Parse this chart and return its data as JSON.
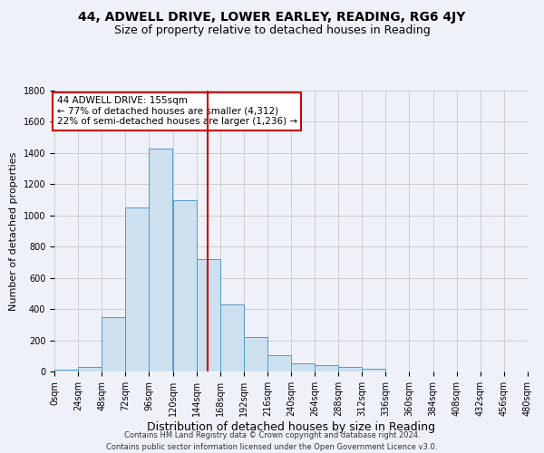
{
  "title1": "44, ADWELL DRIVE, LOWER EARLEY, READING, RG6 4JY",
  "title2": "Size of property relative to detached houses in Reading",
  "xlabel": "Distribution of detached houses by size in Reading",
  "ylabel": "Number of detached properties",
  "footnote1": "Contains HM Land Registry data © Crown copyright and database right 2024.",
  "footnote2": "Contains public sector information licensed under the Open Government Licence v3.0.",
  "property_size": 155,
  "annotation_title": "44 ADWELL DRIVE: 155sqm",
  "annotation_line1": "← 77% of detached houses are smaller (4,312)",
  "annotation_line2": "22% of semi-detached houses are larger (1,236) →",
  "bin_edges": [
    0,
    24,
    48,
    72,
    96,
    120,
    144,
    168,
    192,
    216,
    240,
    264,
    288,
    312,
    336,
    360,
    384,
    408,
    432,
    456,
    480
  ],
  "bar_heights": [
    10,
    30,
    350,
    1050,
    1430,
    1100,
    720,
    430,
    220,
    105,
    50,
    40,
    30,
    20,
    0,
    0,
    0,
    0,
    0,
    0
  ],
  "bar_facecolor": "#cce0f0",
  "bar_edgecolor": "#5599cc",
  "vline_color": "#cc0000",
  "vline_x": 155,
  "annotation_box_edgecolor": "#cc0000",
  "annotation_box_facecolor": "#ffffff",
  "grid_color": "#cccccc",
  "background_color": "#eef2f8",
  "ylim": [
    0,
    1800
  ],
  "yticks": [
    0,
    200,
    400,
    600,
    800,
    1000,
    1200,
    1400,
    1600,
    1800
  ],
  "title1_fontsize": 10,
  "title2_fontsize": 9,
  "xlabel_fontsize": 9,
  "ylabel_fontsize": 8,
  "tick_fontsize": 7,
  "footnote_fontsize": 6,
  "annotation_fontsize": 7.5
}
